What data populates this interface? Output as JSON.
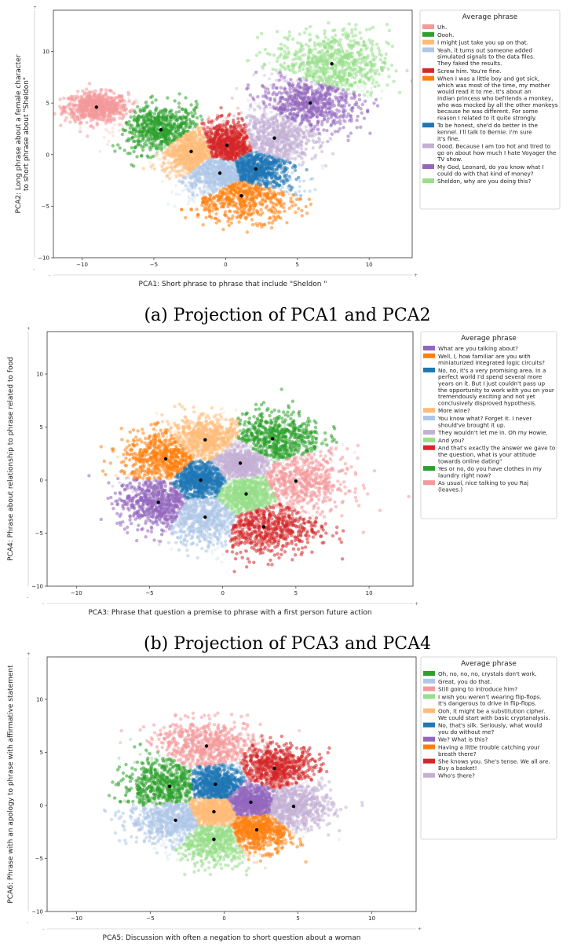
{
  "colors": {
    "pink": "#f4999a",
    "green": "#2ca02c",
    "peach": "#ffbb78",
    "lightblue": "#aec7e8",
    "red": "#d62728",
    "orange": "#ff7f0e",
    "blue": "#1f77b4",
    "lavender": "#c5b0d5",
    "purple": "#9467bd",
    "lightgreen": "#98df8a"
  },
  "captions": [
    "(a) Projection of PCA1 and PCA2",
    "(b) Projection of PCA3 and PCA4"
  ],
  "chart_data": [
    {
      "type": "scatter",
      "xlabel": "PCA1: Short phrase to phrase that include \"Sheldon \"",
      "ylabel": "PCA2: Long phrase about a female character to short phrase about \"Sheldon\"",
      "xlim": [
        -12,
        13
      ],
      "ylim": [
        -10,
        14
      ],
      "xticks": [
        -10,
        -5,
        0,
        5,
        10
      ],
      "yticks": [
        -10,
        -5,
        0,
        5,
        10
      ],
      "legend_title": "Average phrase",
      "legend_position": "right",
      "series": [
        {
          "name": "Uh.",
          "color": "pink",
          "center": [
            -9.0,
            4.6
          ],
          "spread": [
            1.1,
            0.7
          ]
        },
        {
          "name": "Oooh.",
          "color": "green",
          "center": [
            -4.5,
            2.4
          ],
          "spread": [
            1.5,
            1.2
          ]
        },
        {
          "name": "I might just take you up on that.",
          "color": "peach",
          "center": [
            -2.4,
            0.3
          ],
          "spread": [
            1.0,
            1.1
          ]
        },
        {
          "name": "Yeah, it turns out someone added simulated signals to the data files. They faked the results.",
          "color": "lightblue",
          "center": [
            -0.4,
            -1.8
          ],
          "spread": [
            1.4,
            0.9
          ]
        },
        {
          "name": "Screw him. You're fine.",
          "color": "red",
          "center": [
            0.1,
            0.9
          ],
          "spread": [
            1.0,
            1.1
          ]
        },
        {
          "name": "When I was a little boy and got sick, which was most of the time, my mother would read it to me. It's about an Indian princess who befriends a monkey, who was mocked by all the other monkeys because he was different. For some reason I related to it quite strongly.",
          "color": "orange",
          "center": [
            1.1,
            -4.0
          ],
          "spread": [
            2.0,
            1.2
          ]
        },
        {
          "name": "To be honest, she'd do better in the kennel. I'll talk to Bernie. I'm sure it's fine.",
          "color": "blue",
          "center": [
            2.1,
            -1.4
          ],
          "spread": [
            1.3,
            1.0
          ]
        },
        {
          "name": "Good. Because I am too hot and tired to go on about how much I hate Voyager the TV show.",
          "color": "lavender",
          "center": [
            3.4,
            1.6
          ],
          "spread": [
            1.5,
            1.3
          ]
        },
        {
          "name": "My God, Leonard, do you know what I could do with that kind of money?",
          "color": "purple",
          "center": [
            5.9,
            5.0
          ],
          "spread": [
            1.8,
            1.3
          ]
        },
        {
          "name": "Sheldon, why are you doing this?",
          "color": "lightgreen",
          "center": [
            7.4,
            8.8
          ],
          "spread": [
            2.0,
            1.6
          ]
        }
      ]
    },
    {
      "type": "scatter",
      "xlabel": "PCA3: Phrase that question a premise to phrase with a first person future action",
      "ylabel": "PCA4: Phrase about relationship to phrase related to food",
      "xlim": [
        -12,
        13
      ],
      "ylim": [
        -10,
        14
      ],
      "xticks": [
        -10,
        -5,
        0,
        5,
        10
      ],
      "yticks": [
        -10,
        -5,
        0,
        5,
        10
      ],
      "legend_title": "Average phrase",
      "legend_position": "right",
      "series": [
        {
          "name": "What are you talking about?",
          "color": "purple",
          "center": [
            -4.4,
            -2.1
          ],
          "spread": [
            1.4,
            1.2
          ]
        },
        {
          "name": "Well, I, how familiar are you with miniaturized integrated logic circuits?",
          "color": "orange",
          "center": [
            -3.9,
            2.0
          ],
          "spread": [
            1.5,
            1.3
          ]
        },
        {
          "name": "No, no, it's a very promising area. In a perfect world I'd spend several more years on it. But I just couldn't pass up the opportunity to work with you on your tremendously exciting and not yet conclusively disproved hypothesis.",
          "color": "blue",
          "center": [
            -1.5,
            0.0
          ],
          "spread": [
            1.0,
            0.9
          ]
        },
        {
          "name": "More wine?",
          "color": "peach",
          "center": [
            -1.2,
            3.8
          ],
          "spread": [
            1.4,
            1.1
          ]
        },
        {
          "name": "You know what? Forget it. I never should've brought it up.",
          "color": "lightblue",
          "center": [
            -1.2,
            -3.5
          ],
          "spread": [
            1.5,
            1.3
          ]
        },
        {
          "name": "They wouldn't let me in. Oh my Howie.",
          "color": "lavender",
          "center": [
            1.2,
            1.6
          ],
          "spread": [
            0.9,
            0.7
          ]
        },
        {
          "name": "And you?",
          "color": "lightgreen",
          "center": [
            1.6,
            -1.3
          ],
          "spread": [
            1.0,
            0.9
          ]
        },
        {
          "name": "And that's exactly the answer we gave to the question, what is your attitude towards online dating\"",
          "color": "red",
          "center": [
            2.8,
            -4.4
          ],
          "spread": [
            1.9,
            1.4
          ]
        },
        {
          "name": "Yes or no, do you have clothes in my laundry right now?",
          "color": "green",
          "center": [
            3.4,
            3.9
          ],
          "spread": [
            1.7,
            1.3
          ]
        },
        {
          "name": "As usual, nice talking to you Raj (leaves.)",
          "color": "pink",
          "center": [
            5.0,
            -0.1
          ],
          "spread": [
            1.8,
            1.6
          ]
        }
      ]
    },
    {
      "type": "scatter",
      "xlabel": "PCA5: Discussion with often a negation to short question about a woman",
      "ylabel": "PCA6: Phrase with an apology to phrase with affirmative statement",
      "xlim": [
        -12,
        13
      ],
      "ylim": [
        -10,
        14
      ],
      "xticks": [
        -10,
        -5,
        0,
        5,
        10
      ],
      "yticks": [
        -10,
        -5,
        0,
        5,
        10
      ],
      "legend_title": "Average phrase",
      "legend_position": "right",
      "series": [
        {
          "name": "Oh, no, no, no, crystals don't work.",
          "color": "green",
          "center": [
            -3.7,
            1.8
          ],
          "spread": [
            1.6,
            1.3
          ]
        },
        {
          "name": "Great, you do that.",
          "color": "lightblue",
          "center": [
            -3.3,
            -1.4
          ],
          "spread": [
            1.6,
            1.1
          ]
        },
        {
          "name": "Still going to introduce him?",
          "color": "pink",
          "center": [
            -1.2,
            5.6
          ],
          "spread": [
            1.9,
            1.2
          ]
        },
        {
          "name": "I wish you weren't wearing flip-flops. It's dangerous to drive in flip-flops.",
          "color": "lightgreen",
          "center": [
            -0.7,
            -3.2
          ],
          "spread": [
            1.5,
            1.2
          ]
        },
        {
          "name": "Ooh, it might be a substitution cipher. We could start with basic cryptanalysis.",
          "color": "peach",
          "center": [
            -0.7,
            -0.6
          ],
          "spread": [
            0.9,
            0.7
          ]
        },
        {
          "name": "No, that's silk. Seriously, what would you do without me?",
          "color": "blue",
          "center": [
            -0.6,
            2.0
          ],
          "spread": [
            1.0,
            0.9
          ]
        },
        {
          "name": "We? What is this?",
          "color": "purple",
          "center": [
            1.8,
            0.3
          ],
          "spread": [
            0.9,
            0.8
          ]
        },
        {
          "name": "Having a little trouble catching your breath there?",
          "color": "orange",
          "center": [
            2.2,
            -2.3
          ],
          "spread": [
            1.3,
            1.0
          ]
        },
        {
          "name": "She knows you. She's tense. We all are. Buy a basket!",
          "color": "red",
          "center": [
            3.4,
            3.5
          ],
          "spread": [
            1.5,
            1.1
          ]
        },
        {
          "name": "Who's there?",
          "color": "lavender",
          "center": [
            4.7,
            -0.1
          ],
          "spread": [
            1.3,
            1.1
          ]
        }
      ]
    }
  ]
}
